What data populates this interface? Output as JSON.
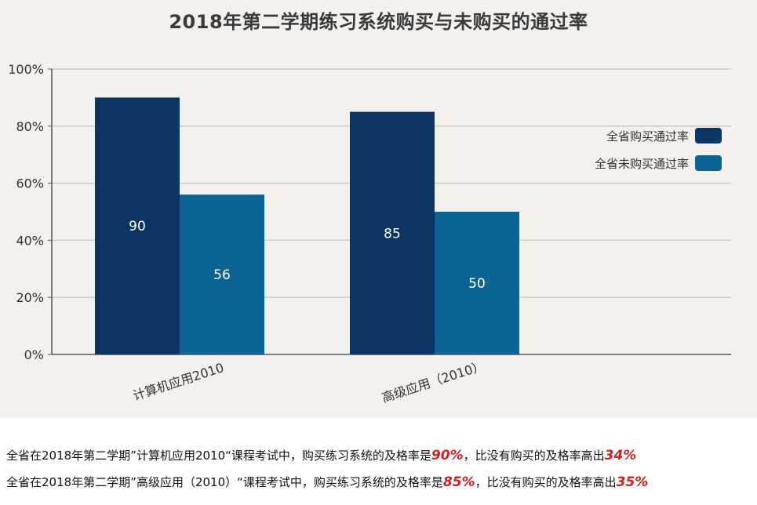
{
  "chart_data": {
    "type": "bar",
    "title": "2018年第二学期练习系统购买与未购买的通过率",
    "categories": [
      "计算机应用2010",
      "高级应用（2010）"
    ],
    "series": [
      {
        "name": "全省购买通过率",
        "values": [
          90,
          85
        ],
        "color": "#0d3563",
        "labels": [
          "90",
          "85"
        ]
      },
      {
        "name": "全省未购买通过率",
        "values": [
          56,
          50
        ],
        "color": "#0c6495",
        "labels": [
          "56",
          "50"
        ]
      }
    ],
    "ylim": [
      0,
      100
    ],
    "yticks": [
      "0%",
      "20%",
      "40%",
      "60%",
      "80%",
      "100%"
    ],
    "legend_position": "right",
    "grid": true
  },
  "notes": [
    {
      "prefix": "全省在2018年第二学期”计算机应用2010“课程考试中，购买练习系统的及格率是",
      "pass": "90%",
      "middle": "，比没有购买的及格率高出",
      "diff": "34%"
    },
    {
      "prefix": "全省在2018年第二学期”高级应用（2010）“课程考试中，购买练习系统的及格率是",
      "pass": "85%",
      "middle": "，比没有购买的及格率高出",
      "diff": "35%"
    }
  ]
}
